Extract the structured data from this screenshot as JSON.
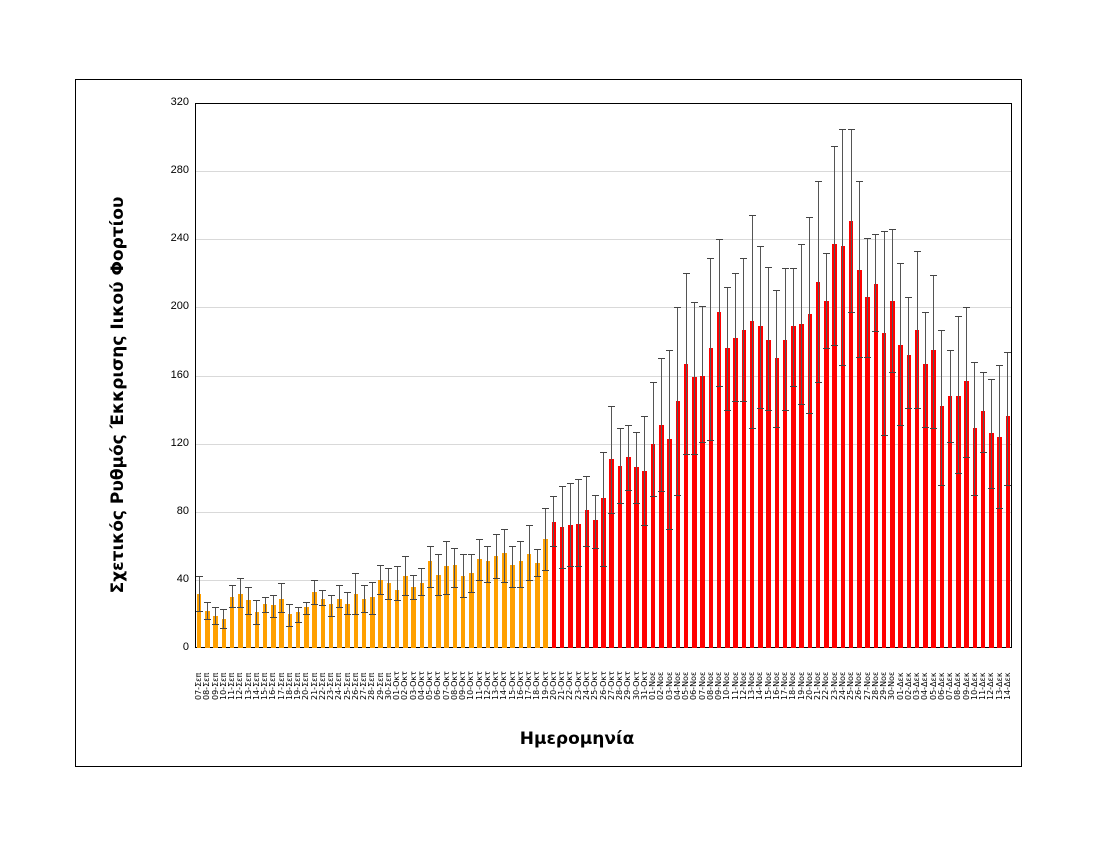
{
  "chart_data": {
    "type": "bar",
    "title": "",
    "xlabel": "Ημερομηνία",
    "ylabel": "Σχετικός Ρυθμός Έκκρισης Ιικού Φορτίου",
    "ylim": [
      0,
      320
    ],
    "yticks": [
      0,
      40,
      80,
      120,
      160,
      200,
      240,
      280,
      320
    ],
    "grid": true,
    "legend": "none",
    "colors": {
      "early": "#FFA000",
      "late": "#FF0000",
      "error_bar": "#555555"
    },
    "color_split_index": 43,
    "categories": [
      "07-Σεπ",
      "08-Σεπ",
      "09-Σεπ",
      "10-Σεπ",
      "11-Σεπ",
      "12-Σεπ",
      "13-Σεπ",
      "14-Σεπ",
      "15-Σεπ",
      "16-Σεπ",
      "17-Σεπ",
      "18-Σεπ",
      "19-Σεπ",
      "20-Σεπ",
      "21-Σεπ",
      "22-Σεπ",
      "23-Σεπ",
      "24-Σεπ",
      "25-Σεπ",
      "26-Σεπ",
      "27-Σεπ",
      "28-Σεπ",
      "29-Σεπ",
      "30-Σεπ",
      "01-Οκτ",
      "02-Οκτ",
      "03-Οκτ",
      "04-Οκτ",
      "05-Οκτ",
      "06-Οκτ",
      "07-Οκτ",
      "08-Οκτ",
      "09-Οκτ",
      "10-Οκτ",
      "11-Οκτ",
      "12-Οκτ",
      "13-Οκτ",
      "14-Οκτ",
      "15-Οκτ",
      "16-Οκτ",
      "17-Οκτ",
      "18-Οκτ",
      "19-Οκτ",
      "20-Οκτ",
      "21-Οκτ",
      "22-Οκτ",
      "23-Οκτ",
      "24-Οκτ",
      "25-Οκτ",
      "26-Οκτ",
      "27-Οκτ",
      "28-Οκτ",
      "29-Οκτ",
      "30-Οκτ",
      "31-Οκτ",
      "01-Νοε",
      "02-Νοε",
      "03-Νοε",
      "04-Νοε",
      "05-Νοε",
      "06-Νοε",
      "07-Νοε",
      "08-Νοε",
      "09-Νοε",
      "10-Νοε",
      "11-Νοε",
      "12-Νοε",
      "13-Νοε",
      "14-Νοε",
      "15-Νοε",
      "16-Νοε",
      "17-Νοε",
      "18-Νοε",
      "19-Νοε",
      "20-Νοε",
      "21-Νοε",
      "22-Νοε",
      "23-Νοε",
      "24-Νοε",
      "25-Νοε",
      "26-Νοε",
      "27-Νοε",
      "28-Νοε",
      "29-Νοε",
      "30-Νοε",
      "01-Δεκ",
      "02-Δεκ",
      "03-Δεκ",
      "04-Δεκ",
      "05-Δεκ",
      "06-Δεκ",
      "07-Δεκ",
      "08-Δεκ",
      "09-Δεκ",
      "10-Δεκ",
      "11-Δεκ",
      "12-Δεκ",
      "13-Δεκ",
      "14-Δεκ"
    ],
    "values": [
      32,
      22,
      19,
      17,
      30,
      32,
      28,
      21,
      26,
      25,
      29,
      20,
      21,
      24,
      33,
      29,
      26,
      29,
      26,
      32,
      29,
      30,
      40,
      38,
      34,
      42,
      36,
      38,
      51,
      43,
      48,
      49,
      42,
      44,
      52,
      51,
      54,
      56,
      49,
      51,
      55,
      50,
      64,
      74,
      71,
      72,
      73,
      81,
      75,
      88,
      111,
      107,
      112,
      106,
      104,
      120,
      131,
      123,
      145,
      167,
      159,
      160,
      176,
      197,
      176,
      182,
      187,
      192,
      189,
      181,
      170,
      181,
      189,
      190,
      196,
      215,
      204,
      237,
      236,
      251,
      222,
      206,
      214,
      185,
      204,
      178,
      172,
      187,
      167,
      175,
      142,
      148,
      148,
      157,
      129,
      139,
      126,
      124,
      136
    ],
    "error_low": [
      22,
      17,
      14,
      12,
      24,
      24,
      20,
      14,
      21,
      18,
      21,
      13,
      15,
      20,
      26,
      25,
      19,
      24,
      20,
      20,
      21,
      20,
      32,
      29,
      28,
      31,
      29,
      31,
      36,
      31,
      32,
      36,
      30,
      33,
      40,
      39,
      41,
      39,
      36,
      36,
      40,
      42,
      46,
      60,
      47,
      48,
      48,
      60,
      59,
      48,
      79,
      85,
      93,
      85,
      72,
      89,
      92,
      70,
      90,
      114,
      114,
      121,
      122,
      154,
      140,
      145,
      145,
      129,
      141,
      140,
      130,
      140,
      154,
      143,
      138,
      156,
      176,
      178,
      166,
      197,
      171,
      171,
      186,
      125,
      162,
      131,
      141,
      141,
      130,
      129,
      96,
      121,
      103,
      112,
      90,
      115,
      94,
      82,
      96
    ],
    "error_high": [
      42,
      27,
      24,
      23,
      37,
      41,
      36,
      28,
      30,
      31,
      38,
      26,
      24,
      27,
      40,
      34,
      31,
      37,
      33,
      44,
      37,
      39,
      49,
      47,
      48,
      54,
      43,
      47,
      60,
      55,
      63,
      59,
      55,
      55,
      64,
      60,
      67,
      70,
      60,
      63,
      72,
      58,
      82,
      89,
      95,
      97,
      99,
      101,
      90,
      115,
      142,
      129,
      131,
      127,
      136,
      156,
      170,
      175,
      200,
      220,
      203,
      201,
      229,
      240,
      212,
      220,
      229,
      254,
      236,
      224,
      210,
      223,
      223,
      237,
      253,
      274,
      232,
      295,
      305,
      305,
      274,
      241,
      243,
      245,
      246,
      226,
      206,
      233,
      197,
      219,
      187,
      175,
      195,
      200,
      168,
      162,
      158,
      166,
      174
    ]
  },
  "axes": {
    "y_title": "Σχετικός Ρυθμός Έκκρισης Ιικού Φορτίου",
    "x_title": "Ημερομηνία",
    "y_tick_labels": [
      "0",
      "40",
      "80",
      "120",
      "160",
      "200",
      "240",
      "280",
      "320"
    ]
  }
}
